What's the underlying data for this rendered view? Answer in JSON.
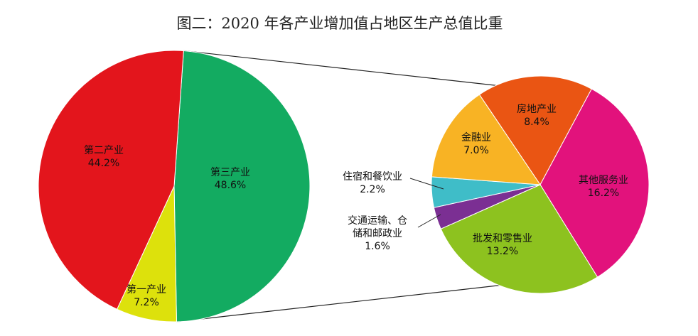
{
  "chart_data": {
    "type": "pie",
    "title": "图二：2020 年各产业增加值占地区生产总值比重",
    "main_pie": [
      {
        "name": "第三产业",
        "value": 48.6,
        "label": "48.6%",
        "color": "#13ab61"
      },
      {
        "name": "第一产业",
        "value": 7.2,
        "label": "7.2%",
        "color": "#dde10c"
      },
      {
        "name": "第二产业",
        "value": 44.2,
        "label": "44.2%",
        "color": "#e3151c"
      }
    ],
    "detail_pie": [
      {
        "name": "房地产业",
        "value": 8.4,
        "label": "8.4%",
        "color": "#ea5513"
      },
      {
        "name": "其他服务业",
        "value": 16.2,
        "label": "16.2%",
        "color": "#e2127c"
      },
      {
        "name": "批发和零售业",
        "value": 13.2,
        "label": "13.2%",
        "color": "#8dc21f"
      },
      {
        "name": "交通运输、仓储和邮政业",
        "value": 1.6,
        "label": "1.6%",
        "color": "#7b2f93"
      },
      {
        "name": "住宿和餐饮业",
        "value": 2.2,
        "label": "2.2%",
        "color": "#3fbdc8"
      },
      {
        "name": "金融业",
        "value": 7.0,
        "label": "7.0%",
        "color": "#f8b324"
      }
    ]
  }
}
